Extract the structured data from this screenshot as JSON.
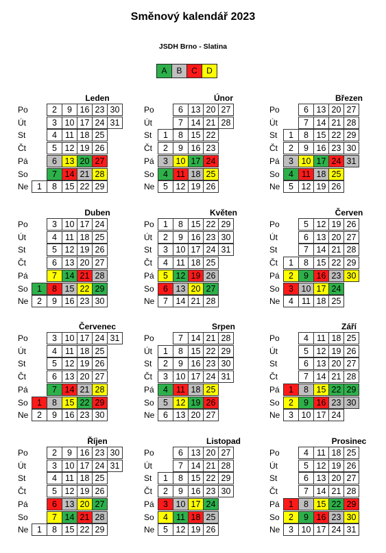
{
  "header": {
    "title": "Směnový kalendář 2023",
    "subtitle": "JSDH Brno - Slatina"
  },
  "legend": [
    {
      "label": "A",
      "color": "#2db04a"
    },
    {
      "label": "B",
      "color": "#bfbfbf"
    },
    {
      "label": "C",
      "color": "#ff1a1a"
    },
    {
      "label": "D",
      "color": "#ffff00"
    }
  ],
  "day_labels": [
    "Po",
    "Út",
    "St",
    "Čt",
    "Pá",
    "So",
    "Ne"
  ],
  "months": [
    {
      "name": "Leden",
      "weeks": [
        [
          null,
          null,
          null,
          null,
          null,
          null,
          1
        ],
        [
          2,
          3,
          4,
          5,
          6,
          7,
          8
        ],
        [
          9,
          10,
          11,
          12,
          13,
          14,
          15
        ],
        [
          16,
          17,
          18,
          19,
          20,
          21,
          22
        ],
        [
          23,
          24,
          25,
          26,
          27,
          28,
          29
        ],
        [
          30,
          31,
          null,
          null,
          null,
          null,
          null
        ]
      ],
      "shifts": {
        "6": "B",
        "7": "A",
        "13": "D",
        "14": "C",
        "20": "A",
        "21": "B",
        "27": "C",
        "28": "D"
      }
    },
    {
      "name": "Únor",
      "weeks": [
        [
          null,
          null,
          1,
          2,
          3,
          4,
          5
        ],
        [
          6,
          7,
          8,
          9,
          10,
          11,
          12
        ],
        [
          13,
          14,
          15,
          16,
          17,
          18,
          19
        ],
        [
          20,
          21,
          22,
          23,
          24,
          25,
          26
        ],
        [
          27,
          28,
          null,
          null,
          null,
          null,
          null
        ]
      ],
      "shifts": {
        "3": "B",
        "4": "A",
        "10": "D",
        "11": "C",
        "17": "A",
        "18": "B",
        "24": "C",
        "25": "D"
      }
    },
    {
      "name": "Březen",
      "weeks": [
        [
          null,
          null,
          1,
          2,
          3,
          4,
          5
        ],
        [
          6,
          7,
          8,
          9,
          10,
          11,
          12
        ],
        [
          13,
          14,
          15,
          16,
          17,
          18,
          19
        ],
        [
          20,
          21,
          22,
          23,
          24,
          25,
          26
        ],
        [
          27,
          28,
          29,
          30,
          31,
          null,
          null
        ]
      ],
      "shifts": {
        "3": "B",
        "4": "A",
        "10": "D",
        "11": "C",
        "17": "A",
        "18": "B",
        "24": "C",
        "25": "D",
        "31": "B"
      }
    },
    {
      "name": "Duben",
      "weeks": [
        [
          null,
          null,
          null,
          null,
          null,
          1,
          2
        ],
        [
          3,
          4,
          5,
          6,
          7,
          8,
          9
        ],
        [
          10,
          11,
          12,
          13,
          14,
          15,
          16
        ],
        [
          17,
          18,
          19,
          20,
          21,
          22,
          23
        ],
        [
          24,
          25,
          26,
          27,
          28,
          29,
          30
        ]
      ],
      "shifts": {
        "1": "A",
        "7": "D",
        "8": "C",
        "14": "A",
        "15": "B",
        "21": "C",
        "22": "D",
        "28": "B",
        "29": "A"
      }
    },
    {
      "name": "Květen",
      "weeks": [
        [
          1,
          2,
          3,
          4,
          5,
          6,
          7
        ],
        [
          8,
          9,
          10,
          11,
          12,
          13,
          14
        ],
        [
          15,
          16,
          17,
          18,
          19,
          20,
          21
        ],
        [
          22,
          23,
          24,
          25,
          26,
          27,
          28
        ],
        [
          29,
          30,
          31,
          null,
          null,
          null,
          null
        ]
      ],
      "shifts": {
        "5": "D",
        "6": "C",
        "12": "A",
        "13": "B",
        "19": "C",
        "20": "D",
        "26": "B",
        "27": "A"
      }
    },
    {
      "name": "Červen",
      "weeks": [
        [
          null,
          null,
          null,
          1,
          2,
          3,
          4
        ],
        [
          5,
          6,
          7,
          8,
          9,
          10,
          11
        ],
        [
          12,
          13,
          14,
          15,
          16,
          17,
          18
        ],
        [
          19,
          20,
          21,
          22,
          23,
          24,
          25
        ],
        [
          26,
          27,
          28,
          29,
          30,
          null,
          null
        ]
      ],
      "shifts": {
        "2": "D",
        "3": "C",
        "9": "A",
        "10": "B",
        "16": "C",
        "17": "D",
        "23": "B",
        "24": "A",
        "30": "D"
      }
    },
    {
      "name": "Červenec",
      "weeks": [
        [
          null,
          null,
          null,
          null,
          null,
          1,
          2
        ],
        [
          3,
          4,
          5,
          6,
          7,
          8,
          9
        ],
        [
          10,
          11,
          12,
          13,
          14,
          15,
          16
        ],
        [
          17,
          18,
          19,
          20,
          21,
          22,
          23
        ],
        [
          24,
          25,
          26,
          27,
          28,
          29,
          30
        ],
        [
          31,
          null,
          null,
          null,
          null,
          null,
          null
        ]
      ],
      "shifts": {
        "1": "C",
        "7": "A",
        "8": "B",
        "14": "C",
        "15": "D",
        "21": "B",
        "22": "A",
        "28": "D",
        "29": "C"
      }
    },
    {
      "name": "Srpen",
      "weeks": [
        [
          null,
          1,
          2,
          3,
          4,
          5,
          6
        ],
        [
          7,
          8,
          9,
          10,
          11,
          12,
          13
        ],
        [
          14,
          15,
          16,
          17,
          18,
          19,
          20
        ],
        [
          21,
          22,
          23,
          24,
          25,
          26,
          27
        ],
        [
          28,
          29,
          30,
          31,
          null,
          null,
          null
        ]
      ],
      "shifts": {
        "4": "A",
        "5": "B",
        "11": "C",
        "12": "D",
        "18": "B",
        "19": "A",
        "25": "D",
        "26": "C"
      }
    },
    {
      "name": "Září",
      "weeks": [
        [
          null,
          null,
          null,
          null,
          1,
          2,
          3
        ],
        [
          4,
          5,
          6,
          7,
          8,
          9,
          10
        ],
        [
          11,
          12,
          13,
          14,
          15,
          16,
          17
        ],
        [
          18,
          19,
          20,
          21,
          22,
          23,
          24
        ],
        [
          25,
          26,
          27,
          28,
          29,
          30,
          null
        ]
      ],
      "shifts": {
        "1": "C",
        "2": "D",
        "8": "B",
        "9": "A",
        "15": "D",
        "16": "C",
        "22": "A",
        "23": "B",
        "29": "A",
        "30": "B"
      }
    },
    {
      "name": "Říjen",
      "weeks": [
        [
          null,
          null,
          null,
          null,
          null,
          null,
          1
        ],
        [
          2,
          3,
          4,
          5,
          6,
          7,
          8
        ],
        [
          9,
          10,
          11,
          12,
          13,
          14,
          15
        ],
        [
          16,
          17,
          18,
          19,
          20,
          21,
          22
        ],
        [
          23,
          24,
          25,
          26,
          27,
          28,
          29
        ],
        [
          30,
          31,
          null,
          null,
          null,
          null,
          null
        ]
      ],
      "shifts": {
        "6": "C",
        "7": "D",
        "13": "B",
        "14": "A",
        "20": "D",
        "21": "C",
        "27": "A",
        "28": "B"
      }
    },
    {
      "name": "Listopad",
      "weeks": [
        [
          null,
          null,
          1,
          2,
          3,
          4,
          5
        ],
        [
          6,
          7,
          8,
          9,
          10,
          11,
          12
        ],
        [
          13,
          14,
          15,
          16,
          17,
          18,
          19
        ],
        [
          20,
          21,
          22,
          23,
          24,
          25,
          26
        ],
        [
          27,
          28,
          29,
          30,
          null,
          null,
          null
        ]
      ],
      "shifts": {
        "3": "C",
        "4": "D",
        "10": "B",
        "11": "A",
        "17": "D",
        "18": "C",
        "24": "A",
        "25": "B"
      }
    },
    {
      "name": "Prosinec",
      "weeks": [
        [
          null,
          null,
          null,
          null,
          1,
          2,
          3
        ],
        [
          4,
          5,
          6,
          7,
          8,
          9,
          10
        ],
        [
          11,
          12,
          13,
          14,
          15,
          16,
          17
        ],
        [
          18,
          19,
          20,
          21,
          22,
          23,
          24
        ],
        [
          25,
          26,
          27,
          28,
          29,
          30,
          31
        ]
      ],
      "shifts": {
        "1": "C",
        "2": "D",
        "8": "B",
        "9": "A",
        "15": "D",
        "16": "C",
        "22": "A",
        "23": "B",
        "29": "C",
        "30": "D"
      }
    }
  ]
}
